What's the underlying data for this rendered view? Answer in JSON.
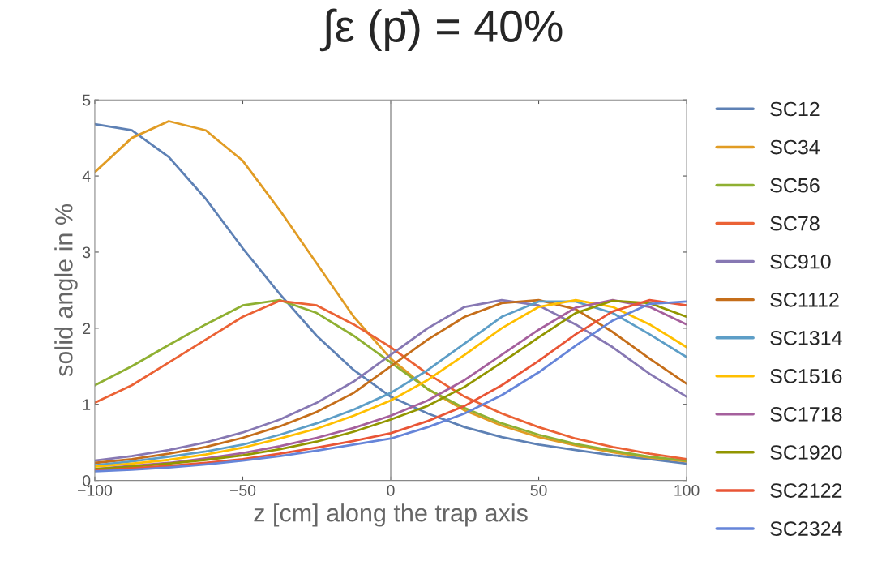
{
  "chart_data": {
    "type": "line",
    "title": "∫ε (p̄) = 40%",
    "xlabel": "z [cm] along the trap axis",
    "ylabel": "solid angle in %",
    "x": [
      -100,
      -87.5,
      -75,
      -62.5,
      -50,
      -37.5,
      -25,
      -12.5,
      0,
      12.5,
      25,
      37.5,
      50,
      62.5,
      75,
      87.5,
      100
    ],
    "xlim": [
      -100,
      100
    ],
    "xticks": [
      {
        "value": -100,
        "label": "−100"
      },
      {
        "value": -50,
        "label": "−50"
      },
      0,
      50,
      100
    ],
    "ylim": [
      0,
      5
    ],
    "yticks": [
      0,
      1,
      2,
      3,
      4,
      5
    ],
    "grid": false,
    "legend": "right",
    "marker": "none",
    "line_style": "solid",
    "ref_lines": [
      {
        "axis": "x",
        "value": 0,
        "color": "#a0a0a0"
      }
    ],
    "series": [
      {
        "name": "SC12",
        "color": "#5e81b5",
        "values": [
          4.68,
          4.6,
          4.25,
          3.7,
          3.05,
          2.45,
          1.9,
          1.45,
          1.1,
          0.88,
          0.7,
          0.57,
          0.47,
          0.4,
          0.33,
          0.28,
          0.22
        ]
      },
      {
        "name": "SC34",
        "color": "#e19c24",
        "values": [
          4.05,
          4.5,
          4.72,
          4.6,
          4.2,
          3.55,
          2.85,
          2.15,
          1.6,
          1.2,
          0.92,
          0.72,
          0.57,
          0.46,
          0.37,
          0.3,
          0.25
        ]
      },
      {
        "name": "SC56",
        "color": "#8fb032",
        "values": [
          1.25,
          1.5,
          1.78,
          2.05,
          2.3,
          2.37,
          2.2,
          1.9,
          1.55,
          1.2,
          0.95,
          0.75,
          0.6,
          0.48,
          0.39,
          0.31,
          0.26
        ]
      },
      {
        "name": "SC78",
        "color": "#eb6235",
        "values": [
          1.02,
          1.25,
          1.55,
          1.85,
          2.15,
          2.36,
          2.3,
          2.05,
          1.75,
          1.4,
          1.1,
          0.88,
          0.7,
          0.55,
          0.44,
          0.35,
          0.28
        ]
      },
      {
        "name": "SC910",
        "color": "#8778b3",
        "values": [
          0.26,
          0.32,
          0.4,
          0.5,
          0.63,
          0.8,
          1.02,
          1.3,
          1.65,
          2.0,
          2.28,
          2.37,
          2.3,
          2.05,
          1.75,
          1.4,
          1.1
        ]
      },
      {
        "name": "SC1112",
        "color": "#c56e1a",
        "values": [
          0.23,
          0.28,
          0.35,
          0.44,
          0.56,
          0.71,
          0.9,
          1.15,
          1.5,
          1.85,
          2.15,
          2.33,
          2.37,
          2.25,
          1.95,
          1.6,
          1.27
        ]
      },
      {
        "name": "SC1314",
        "color": "#5d9ec7",
        "values": [
          0.2,
          0.25,
          0.31,
          0.38,
          0.47,
          0.6,
          0.75,
          0.93,
          1.15,
          1.45,
          1.8,
          2.15,
          2.35,
          2.35,
          2.2,
          1.92,
          1.62
        ]
      },
      {
        "name": "SC1516",
        "color": "#ffbf00",
        "values": [
          0.18,
          0.22,
          0.27,
          0.34,
          0.43,
          0.55,
          0.68,
          0.85,
          1.05,
          1.32,
          1.65,
          2.0,
          2.28,
          2.37,
          2.28,
          2.05,
          1.75
        ]
      },
      {
        "name": "SC1718",
        "color": "#a5609d",
        "values": [
          0.15,
          0.19,
          0.23,
          0.29,
          0.36,
          0.45,
          0.56,
          0.69,
          0.85,
          1.05,
          1.32,
          1.65,
          1.98,
          2.27,
          2.37,
          2.28,
          2.05
        ]
      },
      {
        "name": "SC1920",
        "color": "#929600",
        "values": [
          0.15,
          0.18,
          0.22,
          0.27,
          0.33,
          0.41,
          0.51,
          0.64,
          0.8,
          0.98,
          1.23,
          1.55,
          1.88,
          2.2,
          2.36,
          2.33,
          2.15
        ]
      },
      {
        "name": "SC2122",
        "color": "#e95536",
        "values": [
          0.13,
          0.16,
          0.19,
          0.23,
          0.28,
          0.35,
          0.43,
          0.52,
          0.62,
          0.78,
          0.98,
          1.25,
          1.57,
          1.92,
          2.22,
          2.37,
          2.3
        ]
      },
      {
        "name": "SC2324",
        "color": "#6685d9",
        "values": [
          0.12,
          0.14,
          0.17,
          0.21,
          0.26,
          0.32,
          0.39,
          0.47,
          0.55,
          0.7,
          0.88,
          1.12,
          1.42,
          1.77,
          2.1,
          2.32,
          2.35
        ]
      }
    ]
  }
}
